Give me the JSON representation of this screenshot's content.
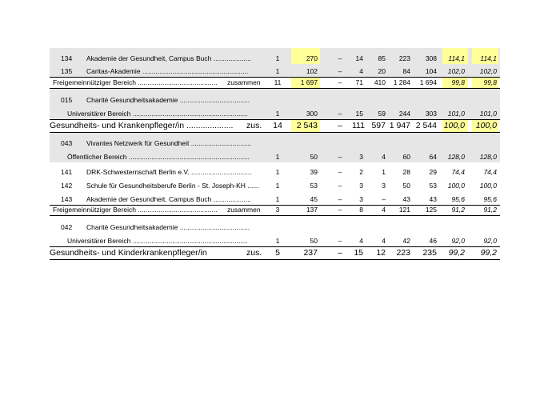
{
  "table": {
    "highlight_color": "#ffff99",
    "rows": [
      {
        "kind": "entry",
        "shaded": true,
        "code": "134",
        "name": "Akademie der Gesundheit, Campus Buch  ....................",
        "values": [
          "1",
          "270",
          "–",
          "14",
          "85",
          "223",
          "308",
          "114,1",
          "114,1"
        ],
        "highlight": [
          1,
          7,
          8
        ]
      },
      {
        "kind": "entry",
        "shaded": true,
        "code": "135",
        "name": " Caritas-Akademie  ........................................................",
        "values": [
          "1",
          "102",
          "–",
          "4",
          "20",
          "84",
          "104",
          "102,0",
          "102,0"
        ]
      },
      {
        "kind": "subtotal",
        "shaded": false,
        "label": "Freigemeinnütziger Bereich  ..........................................",
        "suffix": "zusammen",
        "values": [
          "11",
          "1 697",
          "–",
          "71",
          "410",
          "1 284",
          "1 694",
          "99,8",
          "99,8"
        ],
        "highlight": [
          1,
          7,
          8
        ]
      },
      {
        "kind": "entry",
        "shaded": true,
        "code": "015",
        "name": "Charité Gesundheitsakademie  .....................................",
        "sub": "Universitärer Bereich  .............................................................",
        "values": [
          "1",
          "300",
          "–",
          "15",
          "59",
          "244",
          "303",
          "101,0",
          "101,0"
        ]
      },
      {
        "kind": "total",
        "shaded": false,
        "label": "Gesundheits- und Krankenpfleger/in  ....................",
        "suffix": "zus.",
        "values": [
          "14",
          "2 543",
          "–",
          "111",
          "597",
          "1 947",
          "2 544",
          "100,0",
          "100,0"
        ],
        "highlight": [
          1,
          7,
          8
        ]
      },
      {
        "kind": "entry",
        "shaded": true,
        "code": "043",
        "name": "Vivantes Netzwerk für Gesundheit  ................................",
        "sub": "Öffentlicher Bereich  ................................................................",
        "values": [
          "1",
          "50",
          "–",
          "3",
          "4",
          "60",
          "64",
          "128,0",
          "128,0"
        ]
      },
      {
        "kind": "entry",
        "shaded": false,
        "code": "141",
        "name": "DRK-Schwesternschaft Berlin e.V.  ................................",
        "values": [
          "1",
          "39",
          "–",
          "2",
          "1",
          "28",
          "29",
          "74,4",
          "74,4"
        ]
      },
      {
        "kind": "entry",
        "shaded": false,
        "code": "142",
        "name": "Schule für Gesundheitsberufe Berlin - St. Joseph-KH  ......",
        "values": [
          "1",
          "53",
          "–",
          "3",
          "3",
          "50",
          "53",
          "100,0",
          "100,0"
        ]
      },
      {
        "kind": "entry",
        "shaded": false,
        "code": "143",
        "name": "Akademie der Gesundheit, Campus Buch  ....................",
        "values": [
          "1",
          "45",
          "–",
          "3",
          "–",
          "43",
          "43",
          "95,6",
          "95,6"
        ]
      },
      {
        "kind": "subtotal",
        "shaded": false,
        "label": "Freigemeinnütziger Bereich  ..........................................",
        "suffix": "zusammen",
        "values": [
          "3",
          "137",
          "–",
          "8",
          "4",
          "121",
          "125",
          "91,2",
          "91,2"
        ]
      },
      {
        "kind": "entry",
        "shaded": false,
        "code": "042",
        "name": "Charité Gesundheitsakademie  .....................................",
        "sub": "Universitärer Bereich  .............................................................",
        "values": [
          "1",
          "50",
          "–",
          "4",
          "4",
          "42",
          "46",
          "92,0",
          "92,0"
        ]
      },
      {
        "kind": "total",
        "shaded": false,
        "label": "Gesundheits- und Kinderkrankenpfleger/in",
        "suffix": "zus.",
        "values": [
          "5",
          "237",
          "–",
          "15",
          "12",
          "223",
          "235",
          "99,2",
          "99,2"
        ]
      }
    ]
  }
}
